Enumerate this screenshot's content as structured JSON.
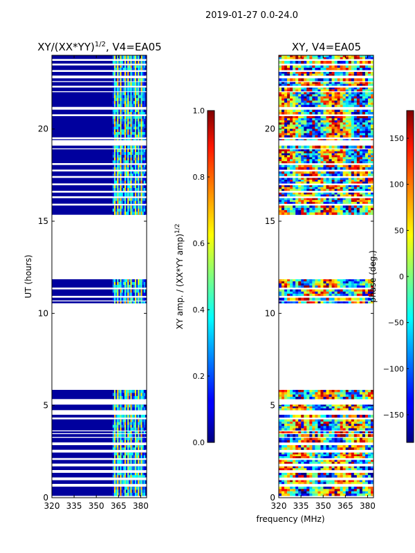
{
  "figure": {
    "suptitle": "2019-01-27 0.0-24.0",
    "shared_xlabel": "frequency (MHz)"
  },
  "chart_data": [
    {
      "type": "heatmap",
      "title": "XY/(XX*YY)",
      "title_exponent": "1/2",
      "title_suffix": ", V4=EA05",
      "xlabel": "",
      "ylabel": "UT (hours)",
      "xlim": [
        320,
        384
      ],
      "ylim": [
        0,
        24
      ],
      "xticks": [
        320,
        335,
        350,
        365,
        380
      ],
      "yticks": [
        0,
        5,
        10,
        15,
        20
      ],
      "background_value": 0.03,
      "bright_channel_band_mhz": [
        361,
        383
      ],
      "data_rows_ut_hours": [
        [
          0.1,
          0.6
        ],
        [
          0.75,
          0.95
        ],
        [
          1.1,
          1.35
        ],
        [
          1.5,
          1.7
        ],
        [
          1.85,
          2.05
        ],
        [
          2.15,
          2.45
        ],
        [
          2.6,
          2.85
        ],
        [
          3.0,
          3.25
        ],
        [
          3.3,
          3.45
        ],
        [
          3.5,
          3.6
        ],
        [
          3.65,
          4.25
        ],
        [
          4.35,
          4.5
        ],
        [
          4.75,
          5.05
        ],
        [
          5.35,
          5.85
        ],
        [
          10.55,
          10.65
        ],
        [
          10.7,
          10.85
        ],
        [
          10.95,
          11.3
        ],
        [
          11.4,
          11.85
        ],
        [
          15.35,
          15.85
        ],
        [
          15.95,
          16.25
        ],
        [
          16.35,
          16.55
        ],
        [
          16.65,
          16.95
        ],
        [
          17.05,
          17.35
        ],
        [
          17.45,
          17.7
        ],
        [
          17.8,
          18.05
        ],
        [
          18.15,
          18.9
        ],
        [
          18.95,
          19.1
        ],
        [
          19.4,
          19.45
        ],
        [
          19.55,
          20.7
        ],
        [
          20.8,
          21.05
        ],
        [
          21.2,
          22.0
        ],
        [
          22.05,
          22.25
        ],
        [
          22.35,
          22.55
        ],
        [
          22.6,
          22.75
        ],
        [
          22.9,
          23.1
        ],
        [
          23.2,
          23.45
        ],
        [
          23.55,
          23.7
        ],
        [
          23.8,
          24.0
        ]
      ],
      "colorbar": {
        "label": "XY amp. / (XX*YY amp)",
        "label_exponent": "1/2",
        "range": [
          0.0,
          1.0
        ],
        "ticks": [
          "0.0",
          "0.2",
          "0.4",
          "0.6",
          "0.8",
          "1.0"
        ],
        "colormap": "jet"
      }
    },
    {
      "type": "heatmap",
      "title": "XY, V4=EA05",
      "xlabel": "frequency (MHz)",
      "ylabel": "",
      "xlim": [
        320,
        384
      ],
      "ylim": [
        0,
        24
      ],
      "xticks": [
        320,
        335,
        350,
        365,
        380
      ],
      "yticks": [
        0,
        5,
        10,
        15,
        20
      ],
      "value_range_deg": [
        -180,
        180
      ],
      "colorbar": {
        "label": "phase (deg.)",
        "range": [
          -180,
          180
        ],
        "ticks": [
          "150",
          "100",
          "50",
          "0",
          "−50",
          "−100",
          "−150"
        ],
        "tick_values": [
          150,
          100,
          50,
          0,
          -50,
          -100,
          -150
        ],
        "colormap": "jet"
      }
    }
  ]
}
